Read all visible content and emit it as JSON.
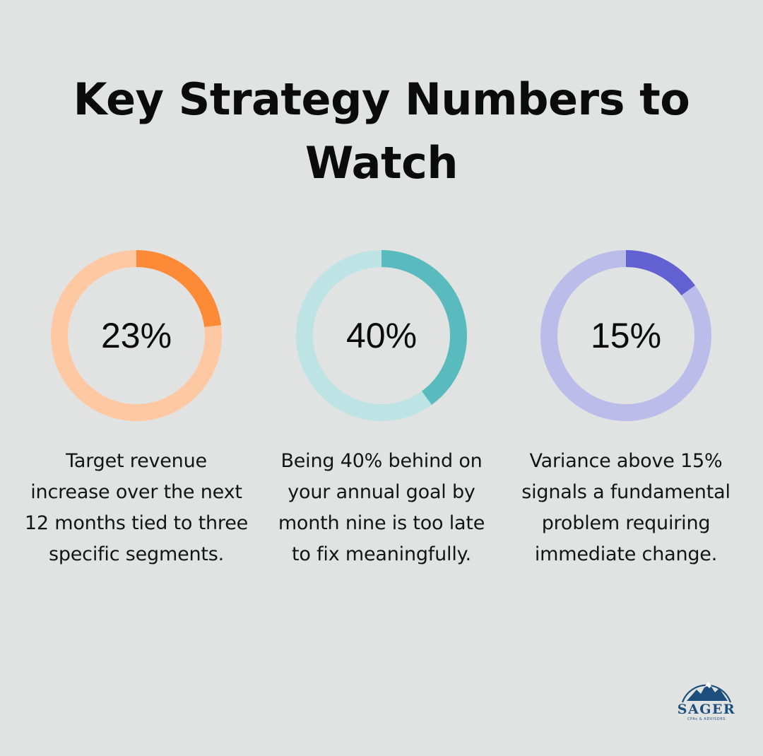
{
  "title": "Key Strategy Numbers to Watch",
  "chart_data": {
    "type": "donut",
    "title": "Key Strategy Numbers to Watch",
    "items": [
      {
        "label": "23%",
        "value": 23,
        "description": "Target revenue increase over the next 12 months tied to three specific segments.",
        "color_fill": "#fc8a37",
        "color_track": "#fec8a2"
      },
      {
        "label": "40%",
        "value": 40,
        "description": "Being 40% behind on your annual goal by month nine is too late to fix meaningfully.",
        "color_fill": "#59bbbd",
        "color_track": "#bde3e4"
      },
      {
        "label": "15%",
        "value": 15,
        "description": "Variance above 15% signals a fundamental problem requiring immediate change.",
        "color_fill": "#6161d2",
        "color_track": "#bcbcea"
      }
    ]
  },
  "logo": {
    "name": "SAGER",
    "tagline": "CPAs & ADVISORS",
    "color": "#1c4f7e"
  }
}
